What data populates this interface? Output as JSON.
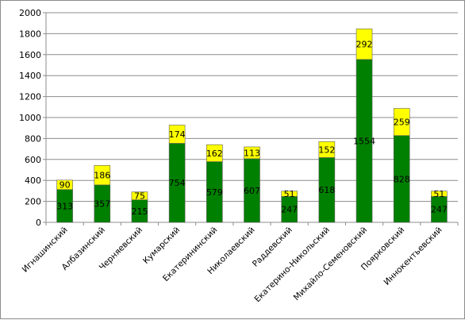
{
  "chart_data": {
    "type": "bar",
    "stacked": true,
    "categories": [
      "Игнашинский",
      "Албазинский",
      "Черняевский",
      "Кумарский",
      "Екатерининский",
      "Николаевский",
      "Раддевский",
      "Екатерино-Никольский",
      "Михайло-Семеновский",
      "Поярковский",
      "Иннокентьевский"
    ],
    "series": [
      {
        "values": [
          313,
          357,
          215,
          754,
          579,
          607,
          247,
          618,
          1554,
          828,
          247
        ],
        "color": "#008000"
      },
      {
        "values": [
          90,
          186,
          75,
          174,
          162,
          113,
          51,
          152,
          292,
          259,
          51
        ],
        "color": "#ffff00"
      }
    ],
    "yticks": [
      "0",
      "200",
      "400",
      "600",
      "800",
      "1000",
      "1200",
      "1400",
      "1600",
      "1800",
      "2000"
    ],
    "ylim": [
      0,
      2000
    ],
    "grid": true,
    "legend": "none",
    "title": "",
    "xlabel": "",
    "ylabel": ""
  }
}
